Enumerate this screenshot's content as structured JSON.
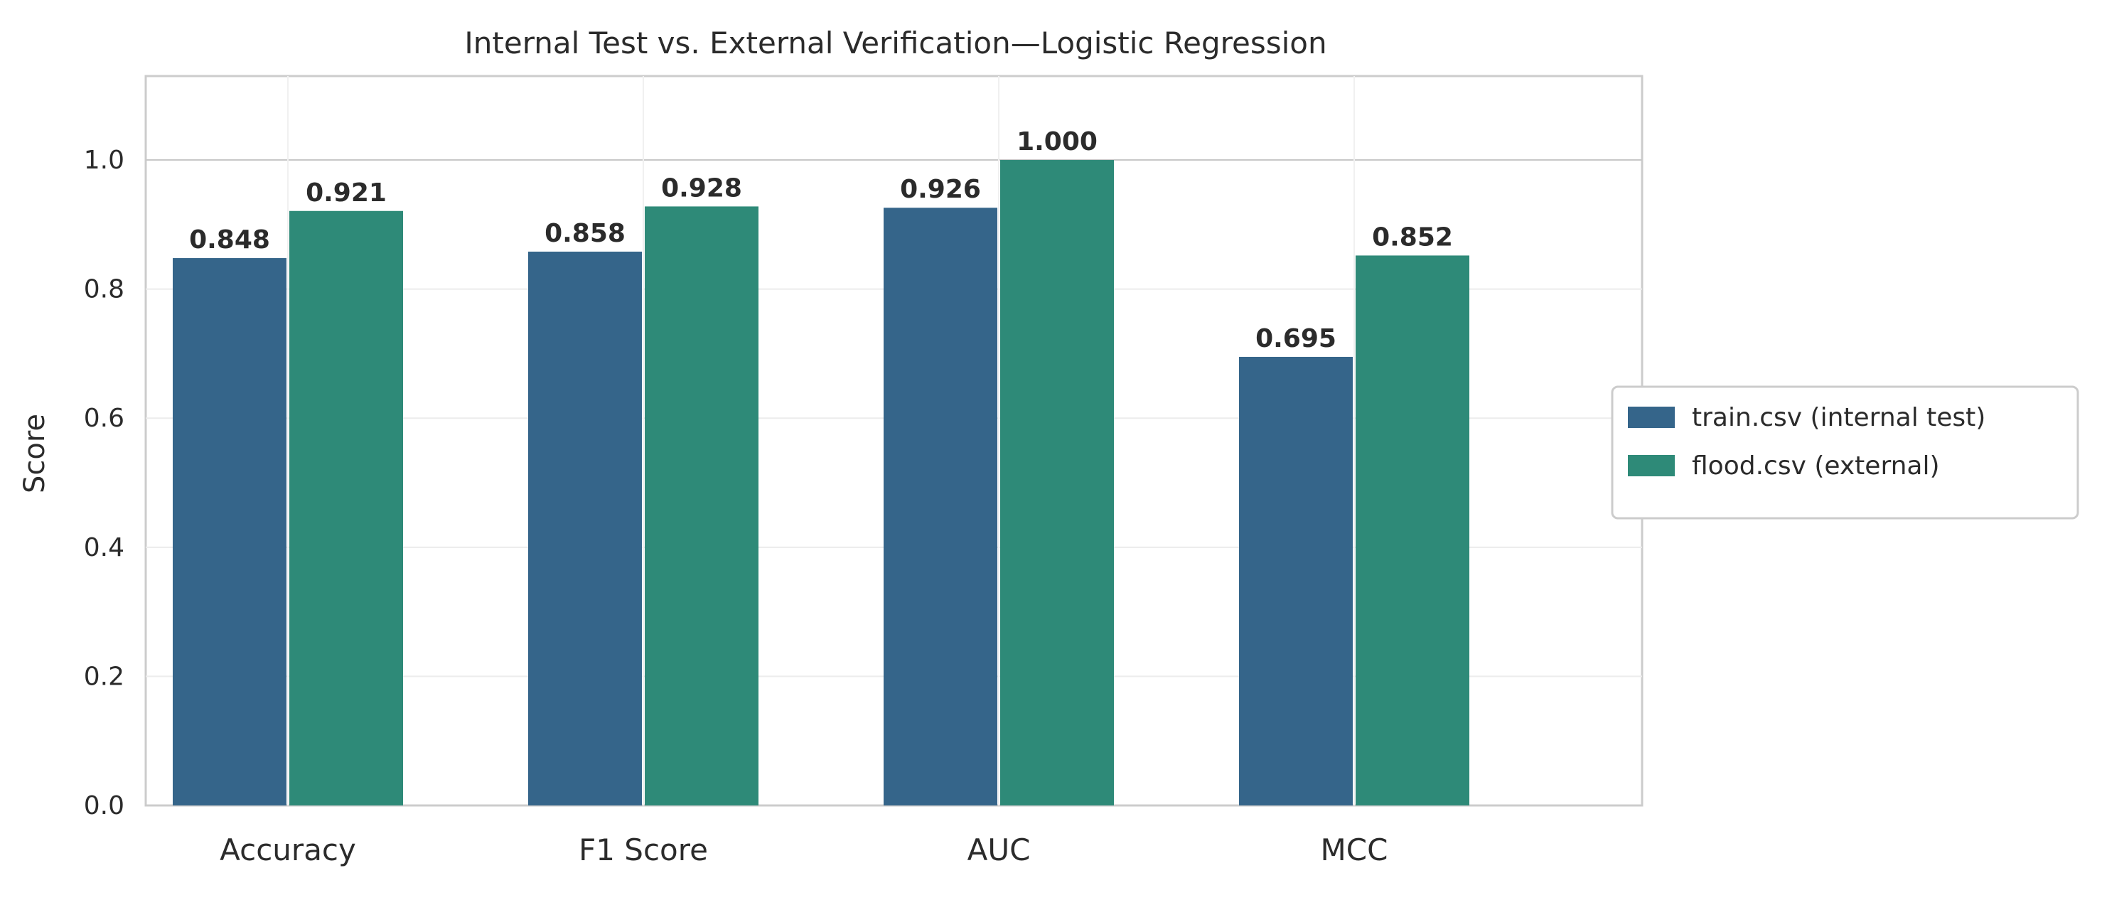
{
  "chart_data": {
    "type": "bar",
    "title": "Internal Test vs. External Verification—Logistic Regression",
    "xlabel": "",
    "ylabel": "Score",
    "ylim": [
      0,
      1.13
    ],
    "yticks": [
      "0.0",
      "0.2",
      "0.4",
      "0.6",
      "0.8",
      "1.0"
    ],
    "categories": [
      "Accuracy",
      "F1 Score",
      "AUC",
      "MCC"
    ],
    "series": [
      {
        "name": "train.csv (internal test)",
        "color": "#35658a",
        "values": [
          0.848,
          0.858,
          0.926,
          0.695
        ],
        "labels": [
          "0.848",
          "0.858",
          "0.926",
          "0.695"
        ]
      },
      {
        "name": "flood.csv (external)",
        "color": "#2e8a78",
        "values": [
          0.921,
          0.928,
          1.0,
          0.852
        ],
        "labels": [
          "0.921",
          "0.928",
          "1.000",
          "0.852"
        ]
      }
    ],
    "grid": true,
    "legend_position": "center-right, outside plot"
  }
}
